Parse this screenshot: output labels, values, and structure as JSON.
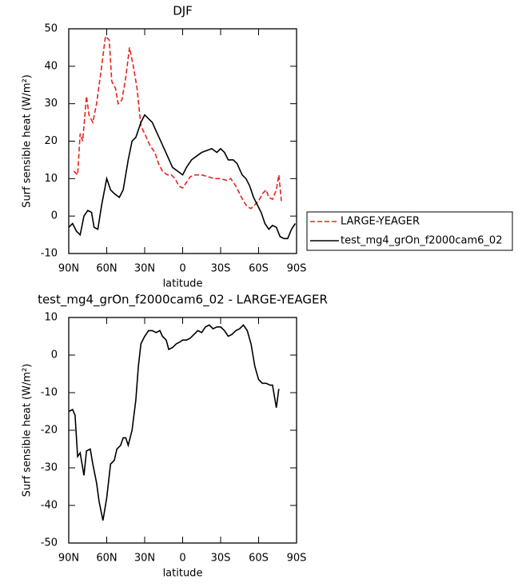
{
  "chart_data": [
    {
      "type": "line",
      "title": "DJF",
      "xlabel": "latitude",
      "ylabel": "Surf sensible heat (W/m²)",
      "xlim": [
        90,
        -90
      ],
      "xticks": [
        {
          "value": 90,
          "label": "90N"
        },
        {
          "value": 60,
          "label": "60N"
        },
        {
          "value": 30,
          "label": "30N"
        },
        0,
        {
          "value": -30,
          "label": "30S"
        },
        {
          "value": -60,
          "label": "60S"
        },
        {
          "value": -90,
          "label": "90S"
        }
      ],
      "ylim": [
        -10,
        50
      ],
      "yticks": [
        -10,
        0,
        10,
        20,
        30,
        40,
        50
      ],
      "legend": "right",
      "series": [
        {
          "name": "LARGE-YEAGER",
          "color": "#e8231e",
          "line_style": "dashed",
          "x": [
            86,
            83,
            81,
            79,
            76,
            74,
            71,
            68,
            64,
            61,
            58,
            56,
            53,
            51,
            48,
            45,
            42,
            39,
            36,
            33,
            30,
            26,
            22,
            19,
            16,
            12,
            9,
            6,
            3,
            0,
            -3,
            -6,
            -10,
            -15,
            -20,
            -25,
            -30,
            -35,
            -38,
            -42,
            -45,
            -48,
            -51,
            -54,
            -57,
            -60,
            -63,
            -66,
            -68,
            -71,
            -74,
            -76,
            -78
          ],
          "values": [
            12,
            11,
            22,
            20,
            32,
            27,
            25,
            30,
            40,
            48,
            47,
            36,
            34,
            30,
            31,
            37,
            45,
            40,
            34,
            24,
            22,
            19,
            17,
            14,
            12,
            11,
            11,
            10,
            8,
            7.5,
            9,
            10.5,
            11,
            11,
            10.5,
            10,
            10,
            9.5,
            10,
            8,
            6,
            4,
            2.5,
            2,
            3,
            4,
            6,
            7,
            5,
            4.5,
            7,
            11,
            4
          ]
        },
        {
          "name": "test_mg4_grOn_f2000cam6_02",
          "color": "#000000",
          "line_style": "solid",
          "x": [
            90,
            87,
            84,
            81,
            78,
            75,
            72,
            70,
            67,
            64,
            60,
            57,
            54,
            50,
            47,
            43,
            40,
            37,
            33,
            30,
            27,
            24,
            20,
            16,
            12,
            8,
            4,
            0,
            -3,
            -7,
            -11,
            -15,
            -19,
            -23,
            -27,
            -30,
            -33,
            -36,
            -40,
            -43,
            -47,
            -50,
            -53,
            -56,
            -59,
            -62,
            -65,
            -68,
            -71,
            -74,
            -77,
            -80,
            -83,
            -86,
            -89
          ],
          "values": [
            -3,
            -2,
            -4,
            -5,
            0,
            1.5,
            1,
            -3,
            -3.5,
            3,
            10,
            7,
            6,
            5,
            7,
            15,
            20,
            21,
            25,
            27,
            26,
            25,
            22,
            19,
            16,
            13,
            12,
            11,
            13,
            15,
            16,
            17,
            17.5,
            18,
            17,
            18,
            17,
            15,
            15,
            14,
            11,
            10,
            8,
            5,
            3,
            1,
            -2,
            -3.5,
            -2.5,
            -3,
            -5.5,
            -6,
            -6,
            -3.5,
            -2
          ]
        }
      ]
    },
    {
      "type": "line",
      "title": "test_mg4_grOn_f2000cam6_02 - LARGE-YEAGER",
      "xlabel": "latitude",
      "ylabel": "Surf sensible heat (W/m²)",
      "xlim": [
        90,
        -90
      ],
      "xticks": [
        {
          "value": 90,
          "label": "90N"
        },
        {
          "value": 60,
          "label": "60N"
        },
        {
          "value": 30,
          "label": "30N"
        },
        0,
        {
          "value": -30,
          "label": "30S"
        },
        {
          "value": -60,
          "label": "60S"
        },
        {
          "value": -90,
          "label": "90S"
        }
      ],
      "ylim": [
        -50,
        10
      ],
      "yticks": [
        -50,
        -40,
        -30,
        -20,
        -10,
        0,
        10
      ],
      "series": [
        {
          "color": "#000000",
          "line_style": "solid",
          "x": [
            90,
            87,
            85,
            83,
            81,
            78,
            76,
            73,
            71,
            68,
            66,
            63,
            60,
            57,
            54,
            52,
            49,
            47,
            45,
            43,
            40,
            37,
            35,
            33,
            30,
            27,
            24,
            21,
            18,
            16,
            13,
            11,
            8,
            5,
            2,
            0,
            -3,
            -6,
            -9,
            -12,
            -15,
            -18,
            -21,
            -24,
            -27,
            -30,
            -33,
            -36,
            -39,
            -42,
            -45,
            -48,
            -51,
            -54,
            -57,
            -60,
            -63,
            -66,
            -69,
            -71,
            -74,
            -76
          ],
          "values": [
            -15,
            -14.5,
            -16,
            -27,
            -26,
            -32,
            -25.5,
            -25,
            -29,
            -34,
            -39,
            -44,
            -38,
            -29,
            -28,
            -25,
            -24,
            -22,
            -22,
            -24,
            -20,
            -12,
            -3,
            3,
            5,
            6.5,
            6.5,
            6,
            6.5,
            5,
            4,
            1.5,
            2,
            3,
            3.5,
            4,
            4,
            4.5,
            5.5,
            6.5,
            6,
            7.5,
            8,
            7,
            7.5,
            7.5,
            6.5,
            5,
            5.5,
            6.5,
            7,
            8,
            6.5,
            3,
            -3,
            -6.5,
            -7.5,
            -7.5,
            -8,
            -8,
            -14,
            -9
          ]
        }
      ]
    }
  ]
}
